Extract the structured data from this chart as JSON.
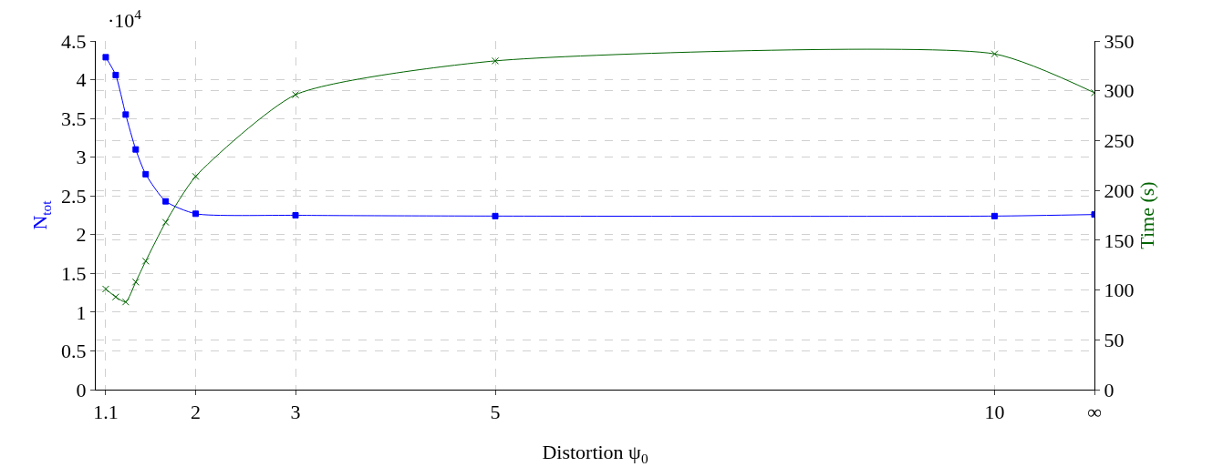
{
  "chart_data": {
    "type": "line",
    "xlabel": "Distortion ψ$_{0}$",
    "ylabel": "N$_{tot}$",
    "y2label": "Time (s)",
    "annotations": [
      "·10$^{4}$"
    ],
    "x": [
      1.1,
      1.2,
      1.3,
      1.4,
      1.5,
      1.7,
      2,
      3,
      5,
      10,
      11
    ],
    "series": [
      {
        "color": "#0000ff",
        "marker": "square",
        "values": [
          4.29,
          4.06,
          3.55,
          3.1,
          2.78,
          2.43,
          2.27,
          2.25,
          2.24,
          2.24,
          2.26
        ]
      },
      {
        "color": "#006400",
        "marker": "cross",
        "axis": "y2",
        "values": [
          101,
          93,
          88,
          108,
          129,
          168,
          214,
          296,
          330,
          337,
          298
        ]
      }
    ],
    "xlim": [
      1,
      11
    ],
    "xticks": [
      1.1,
      2,
      3,
      5,
      10,
      {
        "value": 11,
        "label": "∞"
      }
    ],
    "ylim": [
      0,
      4.5
    ],
    "yticks": [
      0,
      0.5,
      1,
      1.5,
      2,
      2.5,
      3,
      3.5,
      4,
      4.5
    ],
    "y2lim": [
      0,
      350
    ],
    "y2ticks": [
      0,
      50,
      100,
      150,
      200,
      250,
      300,
      350
    ],
    "grid": true,
    "line_style": "solid"
  }
}
